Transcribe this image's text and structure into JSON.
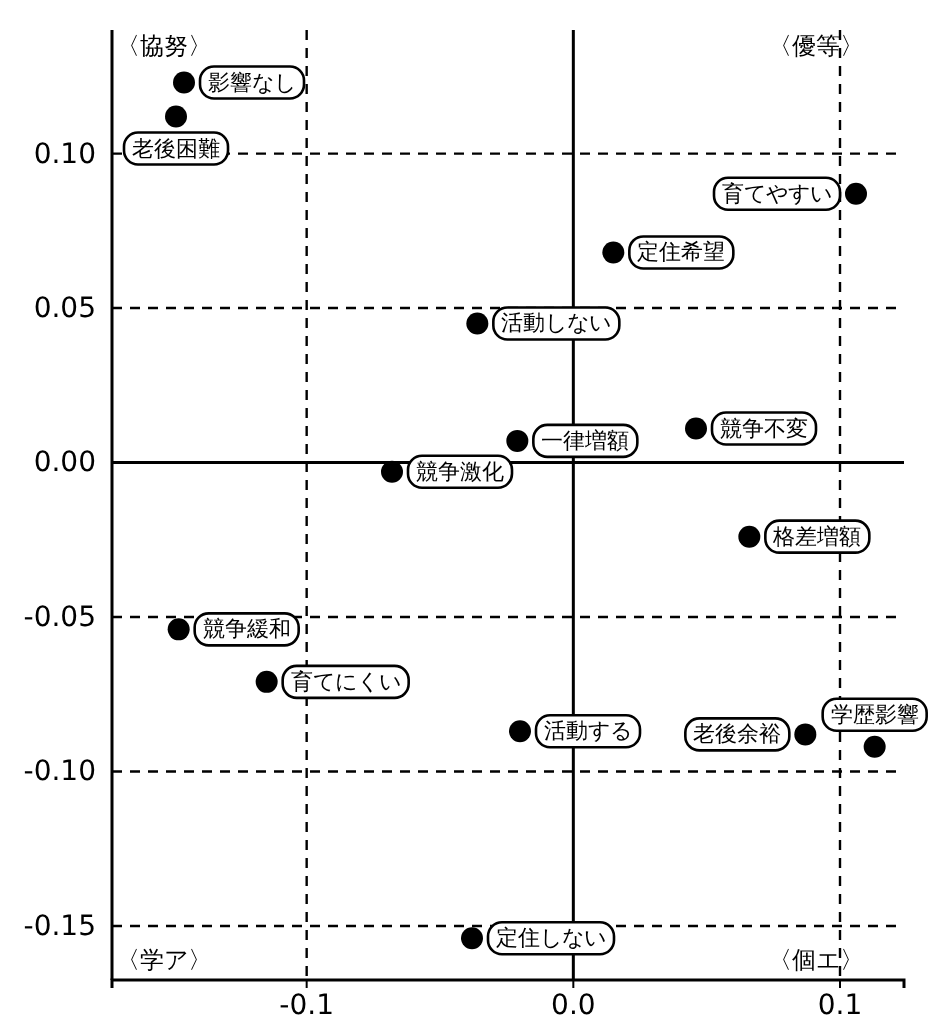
{
  "chart_data": {
    "type": "scatter",
    "xlim": [
      -0.173,
      0.124
    ],
    "ylim": [
      -0.1675,
      0.14
    ],
    "xticks": [
      -0.1,
      {
        "value": 0,
        "label": "0.0"
      },
      0.1
    ],
    "yticks": [
      {
        "value": -0.15,
        "label": "-0.15"
      },
      {
        "value": -0.1,
        "label": "-0.10"
      },
      {
        "value": -0.05,
        "label": "-0.05"
      },
      {
        "value": 0,
        "label": "0.00"
      },
      {
        "value": 0.05,
        "label": "0.05"
      },
      {
        "value": 0.1,
        "label": "0.10"
      }
    ],
    "grid": true,
    "marker": "circle",
    "annotations": [
      "〈協努〉",
      "〈優等〉",
      "〈学ア〉",
      "〈個エ〉"
    ],
    "series": [
      {
        "name": "影響なし",
        "color": "#000000",
        "x": [
          -0.146
        ],
        "values": [
          0.123
        ]
      },
      {
        "name": "老後困難",
        "color": "#000000",
        "x": [
          -0.149
        ],
        "values": [
          0.112
        ]
      },
      {
        "name": "育てやすい",
        "color": "#000000",
        "x": [
          0.106
        ],
        "values": [
          0.087
        ]
      },
      {
        "name": "定住希望",
        "color": "#000000",
        "x": [
          0.015
        ],
        "values": [
          0.068
        ]
      },
      {
        "name": "活動しない",
        "color": "#000000",
        "x": [
          -0.036
        ],
        "values": [
          0.045
        ]
      },
      {
        "name": "一律増額",
        "color": "#000000",
        "x": [
          -0.021
        ],
        "values": [
          0.007
        ]
      },
      {
        "name": "競争不変",
        "color": "#000000",
        "x": [
          0.046
        ],
        "values": [
          0.011
        ]
      },
      {
        "name": "競争激化",
        "color": "#000000",
        "x": [
          -0.068
        ],
        "values": [
          -0.003
        ]
      },
      {
        "name": "格差増額",
        "color": "#000000",
        "x": [
          0.066
        ],
        "values": [
          -0.024
        ]
      },
      {
        "name": "競争緩和",
        "color": "#000000",
        "x": [
          -0.148
        ],
        "values": [
          -0.054
        ]
      },
      {
        "name": "育てにくい",
        "color": "#000000",
        "x": [
          -0.115
        ],
        "values": [
          -0.071
        ]
      },
      {
        "name": "活動する",
        "color": "#000000",
        "x": [
          -0.02
        ],
        "values": [
          -0.087
        ]
      },
      {
        "name": "老後余裕",
        "color": "#000000",
        "x": [
          0.087
        ],
        "values": [
          -0.088
        ]
      },
      {
        "name": "学歴影響",
        "color": "#000000",
        "x": [
          0.113
        ],
        "values": [
          -0.092
        ]
      },
      {
        "name": "定住しない",
        "color": "#000000",
        "x": [
          -0.038
        ],
        "values": [
          -0.154
        ]
      }
    ]
  }
}
